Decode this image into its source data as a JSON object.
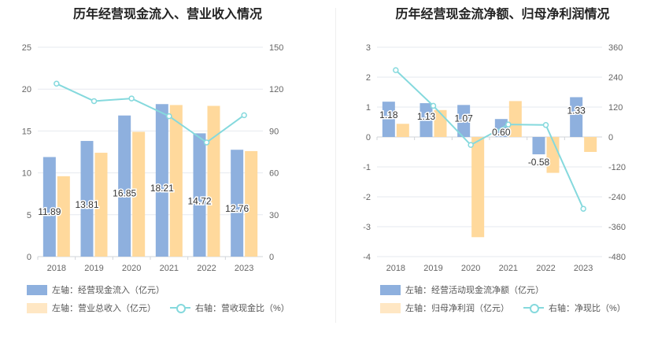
{
  "colors": {
    "blue": "#8eb0de",
    "orange": "#ffd99c",
    "line": "#85d9dd",
    "grid": "#e6e9ef",
    "axis_text": "#666666"
  },
  "chart_data": [
    {
      "type": "bar",
      "title": "历年经营现金流入、营业收入情况",
      "categories": [
        "2018",
        "2019",
        "2020",
        "2021",
        "2022",
        "2023"
      ],
      "left_axis": {
        "ylim": [
          0,
          25
        ],
        "ticks": [
          "0",
          "5",
          "10",
          "15",
          "20",
          "25"
        ]
      },
      "right_axis": {
        "ylim": [
          0,
          150
        ],
        "ticks": [
          "0",
          "30",
          "60",
          "90",
          "120",
          "150"
        ]
      },
      "series": [
        {
          "name": "左轴：经营现金流入（亿元）",
          "axis": "left",
          "kind": "bar",
          "values": [
            11.89,
            13.81,
            16.85,
            18.21,
            14.72,
            12.76
          ],
          "labels": [
            "11.89",
            "13.81",
            "16.85",
            "18.21",
            "14.72",
            "12.76"
          ]
        },
        {
          "name": "左轴：营业总收入（亿元）",
          "axis": "left",
          "kind": "bar",
          "values": [
            9.6,
            12.4,
            14.9,
            18.1,
            18.0,
            12.6
          ]
        },
        {
          "name": "右轴：营收现金比（%）",
          "axis": "right",
          "kind": "line",
          "values": [
            123.9,
            111.4,
            113.3,
            100.6,
            81.8,
            101.3
          ]
        }
      ]
    },
    {
      "type": "bar",
      "title": "历年经营现金流净额、归母净利润情况",
      "categories": [
        "2018",
        "2019",
        "2020",
        "2021",
        "2022",
        "2023"
      ],
      "left_axis": {
        "ylim": [
          -4,
          3
        ],
        "ticks": [
          "-4",
          "-3",
          "-2",
          "-1",
          "0",
          "1",
          "2",
          "3"
        ]
      },
      "right_axis": {
        "ylim": [
          -480,
          360
        ],
        "ticks": [
          "-480",
          "-360",
          "-240",
          "-120",
          "0",
          "120",
          "240",
          "360"
        ]
      },
      "series": [
        {
          "name": "左轴：经营活动现金流净额（亿元）",
          "axis": "left",
          "kind": "bar",
          "values": [
            1.18,
            1.13,
            1.07,
            0.6,
            -0.58,
            1.33
          ],
          "labels": [
            "1.18",
            "1.13",
            "1.07",
            "0.60",
            "-0.58",
            "1.33"
          ]
        },
        {
          "name": "左轴：归母净利润（亿元）",
          "axis": "left",
          "kind": "bar",
          "values": [
            0.44,
            0.9,
            -3.35,
            1.2,
            -1.2,
            -0.5
          ]
        },
        {
          "name": "右轴：净现比（%）",
          "axis": "right",
          "kind": "line",
          "values": [
            268,
            125,
            -32,
            50,
            48,
            -288
          ]
        }
      ]
    }
  ]
}
